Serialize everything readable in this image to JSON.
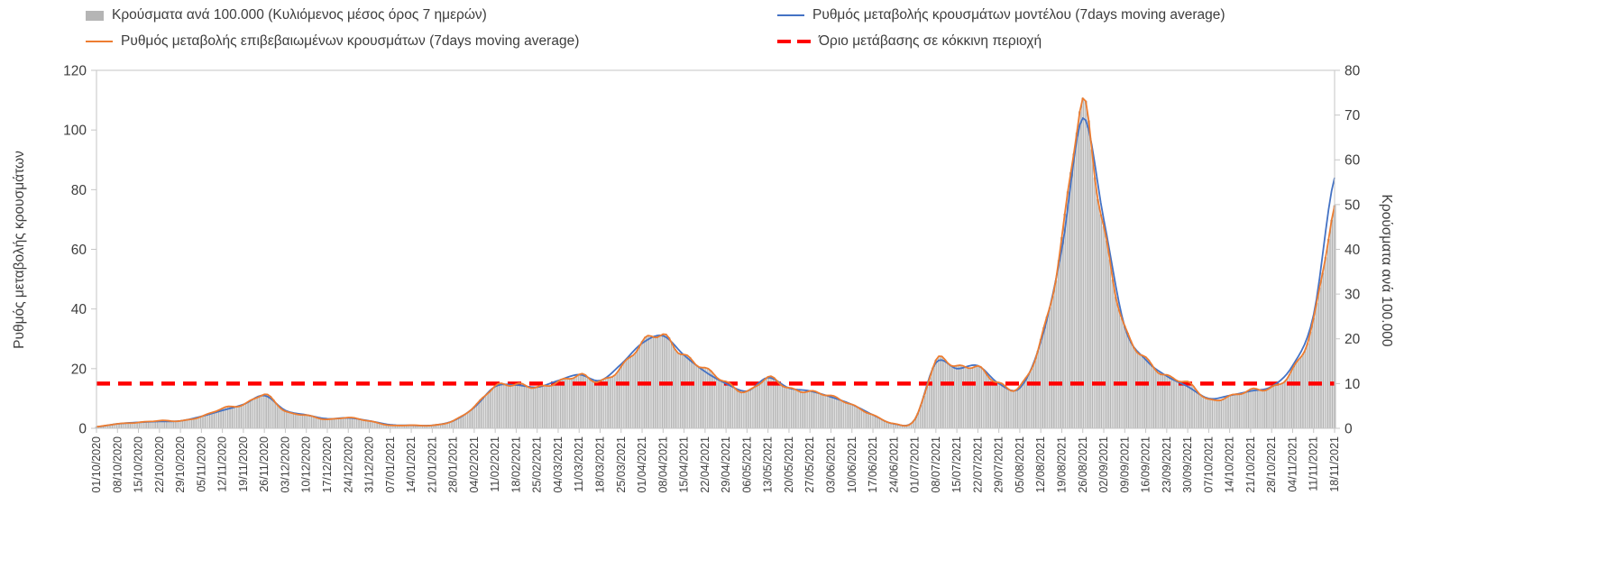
{
  "page": {
    "background": "#ffffff"
  },
  "legend": {
    "position": "top",
    "items": [
      {
        "key": "cases_per_100k",
        "label": "Κρούσματα ανά 100.000 (Κυλιόμενος μέσος όρος 7 ημερών)",
        "marker": "bar",
        "color": "#b5b5b5"
      },
      {
        "key": "model_rate",
        "label": "Ρυθμός μεταβολής κρουσμάτων μοντέλου (7days moving average)",
        "marker": "line",
        "color": "#4472c4"
      },
      {
        "key": "confirmed_rate",
        "label": "Ρυθμός μεταβολής επιβεβαιωμένων κρουσμάτων (7days moving average)",
        "marker": "line",
        "color": "#ed7d31"
      },
      {
        "key": "red_zone_threshold",
        "label": "Όριο μετάβασης σε κόκκινη περιοχή",
        "marker": "dash",
        "color": "#ff0000"
      }
    ]
  },
  "chart_data": {
    "type": "combo",
    "grid": false,
    "legend_position": "top",
    "sampling": "weekly samples of daily 7-day moving averages, values estimated from axes",
    "x_labels": [
      "01/10/2020",
      "08/10/2020",
      "15/10/2020",
      "22/10/2020",
      "29/10/2020",
      "05/11/2020",
      "12/11/2020",
      "19/11/2020",
      "26/11/2020",
      "03/12/2020",
      "10/12/2020",
      "17/12/2020",
      "24/12/2020",
      "31/12/2020",
      "07/01/2021",
      "14/01/2021",
      "21/01/2021",
      "28/01/2021",
      "04/02/2021",
      "11/02/2021",
      "18/02/2021",
      "25/02/2021",
      "04/03/2021",
      "11/03/2021",
      "18/03/2021",
      "25/03/2021",
      "01/04/2021",
      "08/04/2021",
      "15/04/2021",
      "22/04/2021",
      "29/04/2021",
      "06/05/2021",
      "13/05/2021",
      "20/05/2021",
      "27/05/2021",
      "03/06/2021",
      "10/06/2021",
      "17/06/2021",
      "24/06/2021",
      "01/07/2021",
      "08/07/2021",
      "15/07/2021",
      "22/07/2021",
      "29/07/2021",
      "05/08/2021",
      "12/08/2021",
      "19/08/2021",
      "26/08/2021",
      "02/09/2021",
      "09/09/2021",
      "16/09/2021",
      "23/09/2021",
      "30/09/2021",
      "07/10/2021",
      "14/10/2021",
      "21/10/2021",
      "28/10/2021",
      "04/11/2021",
      "11/11/2021",
      "18/11/2021"
    ],
    "left_axis": {
      "label": "Ρυθμός μεταβολής κρουσμάτων",
      "min": 0,
      "max": 120,
      "step": 20
    },
    "right_axis": {
      "label": "Κρούσματα ανά 100.000",
      "min": 0,
      "max": 80,
      "step": 10
    },
    "series": [
      {
        "key": "cases_per_100k",
        "name": "Κρούσματα ανά 100.000 (Κυλιόμενος μέσος όρος 7 ημερών)",
        "type": "bar",
        "axis": "right",
        "fill": "#d9d9d9",
        "stroke": "#8f8f8f",
        "noisy": true,
        "values": [
          0.3,
          1,
          1.3,
          1.7,
          1.7,
          2.7,
          4.3,
          5.3,
          7.7,
          3.7,
          3,
          2,
          2.3,
          1.7,
          0.7,
          0.7,
          0.7,
          1.7,
          4.7,
          9.7,
          9.7,
          9,
          10.7,
          11.7,
          10.3,
          14,
          18.7,
          20.7,
          16.7,
          13,
          10.3,
          8.3,
          11,
          9,
          8.3,
          7,
          5.3,
          3,
          1,
          2,
          15,
          13.3,
          14,
          10,
          9,
          20,
          41.3,
          70.7,
          45.3,
          22,
          15.3,
          12,
          10,
          6.3,
          7.3,
          8.3,
          9,
          13.3,
          23.3,
          48.7
        ]
      },
      {
        "key": "model_rate",
        "name": "Ρυθμός μεταβολής κρουσμάτων μοντέλου (7days moving average)",
        "type": "line",
        "axis": "left",
        "color": "#4472c4",
        "noisy": false,
        "values": [
          0.5,
          1.5,
          2,
          2.3,
          2.5,
          4,
          6,
          8,
          11,
          6,
          4.5,
          3.2,
          3.5,
          2.5,
          1.2,
          1,
          1,
          2.5,
          7,
          14,
          14.5,
          13.8,
          16,
          18,
          16,
          21.5,
          28.5,
          31,
          24.5,
          19,
          15,
          12.5,
          17,
          13.5,
          12.5,
          10.5,
          8,
          4.5,
          1.5,
          3,
          22,
          20,
          21,
          15,
          13.5,
          29,
          60,
          104,
          70,
          34,
          23,
          17.5,
          14,
          10,
          11,
          12.5,
          14,
          21,
          38,
          84
        ]
      },
      {
        "key": "confirmed_rate",
        "name": "Ρυθμός μεταβολής επιβεβαιωμένων κρουσμάτων (7days moving average)",
        "type": "line",
        "axis": "left",
        "color": "#ed7d31",
        "noisy": true,
        "values": [
          0.5,
          1.5,
          2,
          2.5,
          2.5,
          4,
          6.5,
          8,
          11.5,
          5.5,
          4.5,
          3,
          3.5,
          2.5,
          1,
          1,
          1,
          2.5,
          7,
          14.5,
          14.5,
          13.5,
          16,
          17.5,
          15.5,
          21,
          28,
          31,
          25,
          19.5,
          15.5,
          12.5,
          16.5,
          13.5,
          12.5,
          10.5,
          8,
          4.5,
          1.5,
          3,
          22.5,
          20,
          21,
          15,
          13.5,
          30,
          62,
          106,
          68,
          33,
          23,
          18,
          15,
          9.5,
          11,
          12.5,
          13.5,
          20,
          35,
          73
        ]
      },
      {
        "key": "red_zone_threshold",
        "name": "Όριο μετάβασης σε κόκκινη περιοχή",
        "type": "threshold",
        "axis": "left",
        "color": "#ff0000",
        "value": 15
      }
    ]
  }
}
